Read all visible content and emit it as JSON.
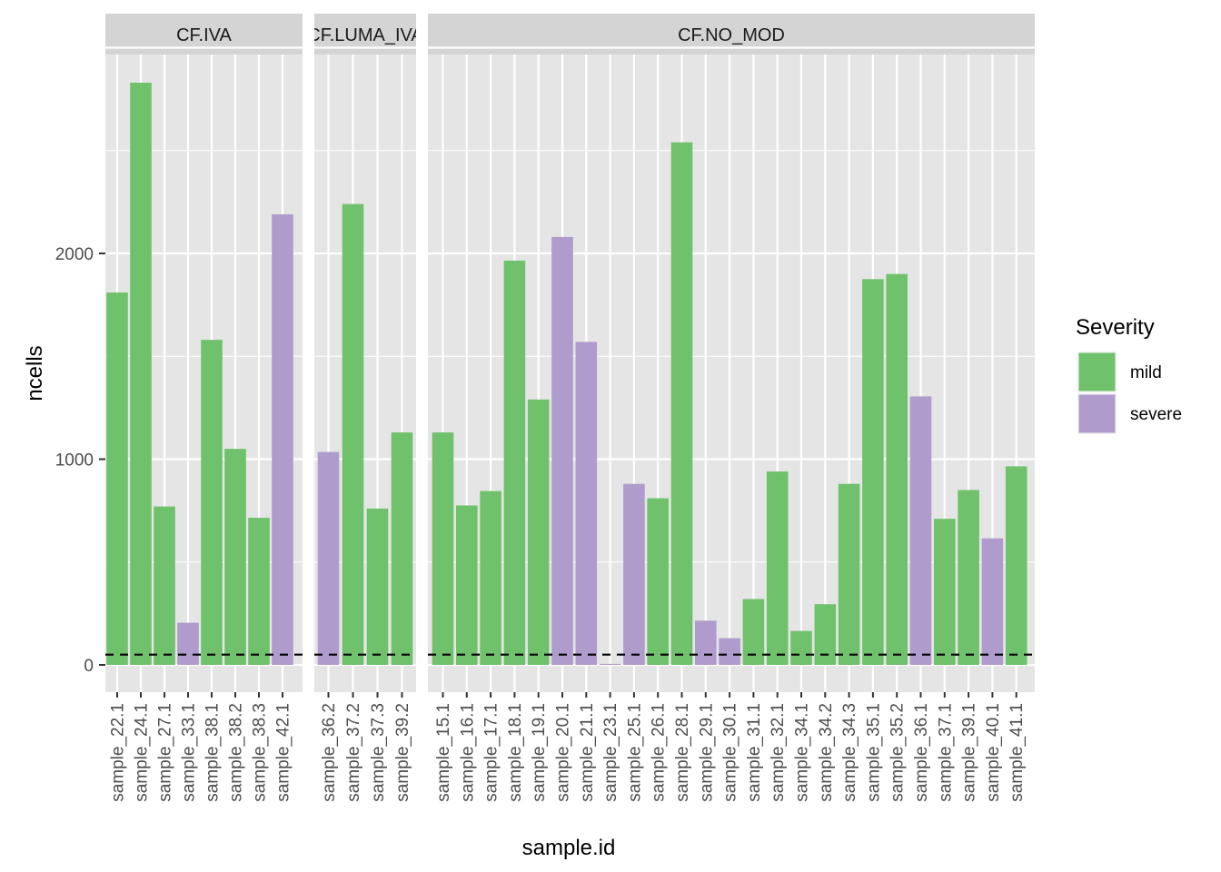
{
  "chart_data": {
    "type": "bar",
    "xlabel": "sample.id",
    "ylabel": "ncells",
    "ylim": [
      -130,
      3180
    ],
    "yticks": [
      0,
      1000,
      2000
    ],
    "reference_line": {
      "y": 50,
      "style": "dashed"
    },
    "colors": {
      "mild": "#6fc26b",
      "severe": "#b09ccc",
      "panel_bg": "#e5e5e5",
      "strip_bg": "#d4d4d4",
      "grid": "#ffffff"
    },
    "legend": {
      "title": "Severity",
      "position": "right",
      "entries": [
        {
          "label": "mild",
          "color": "#6fc26b"
        },
        {
          "label": "severe",
          "color": "#b09ccc"
        }
      ]
    },
    "facets": [
      {
        "label": "CF.IVA",
        "samples": [
          "sample_22.1",
          "sample_24.1",
          "sample_27.1",
          "sample_33.1",
          "sample_38.1",
          "sample_38.2",
          "sample_38.3",
          "sample_42.1"
        ],
        "values": [
          1810,
          2830,
          770,
          205,
          1580,
          1050,
          715,
          2190
        ],
        "severity": [
          "mild",
          "mild",
          "mild",
          "severe",
          "mild",
          "mild",
          "mild",
          "severe"
        ]
      },
      {
        "label": "CF.LUMA_IVA",
        "samples": [
          "sample_36.2",
          "sample_37.2",
          "sample_37.3",
          "sample_39.2"
        ],
        "values": [
          1035,
          2240,
          760,
          1130
        ],
        "severity": [
          "severe",
          "mild",
          "mild",
          "mild"
        ]
      },
      {
        "label": "CF.NO_MOD",
        "samples": [
          "sample_15.1",
          "sample_16.1",
          "sample_17.1",
          "sample_18.1",
          "sample_19.1",
          "sample_20.1",
          "sample_21.1",
          "sample_23.1",
          "sample_25.1",
          "sample_26.1",
          "sample_28.1",
          "sample_29.1",
          "sample_30.1",
          "sample_31.1",
          "sample_32.1",
          "sample_34.1",
          "sample_34.2",
          "sample_34.3",
          "sample_35.1",
          "sample_35.2",
          "sample_36.1",
          "sample_37.1",
          "sample_39.1",
          "sample_40.1",
          "sample_41.1"
        ],
        "values": [
          1130,
          775,
          845,
          1965,
          1290,
          2080,
          1570,
          5,
          880,
          810,
          2540,
          215,
          130,
          320,
          940,
          165,
          295,
          880,
          1875,
          1900,
          1305,
          710,
          850,
          615,
          965
        ],
        "severity": [
          "mild",
          "mild",
          "mild",
          "mild",
          "mild",
          "severe",
          "severe",
          "severe",
          "severe",
          "mild",
          "mild",
          "severe",
          "severe",
          "mild",
          "mild",
          "mild",
          "mild",
          "mild",
          "mild",
          "mild",
          "severe",
          "mild",
          "mild",
          "severe",
          "mild"
        ]
      }
    ]
  }
}
